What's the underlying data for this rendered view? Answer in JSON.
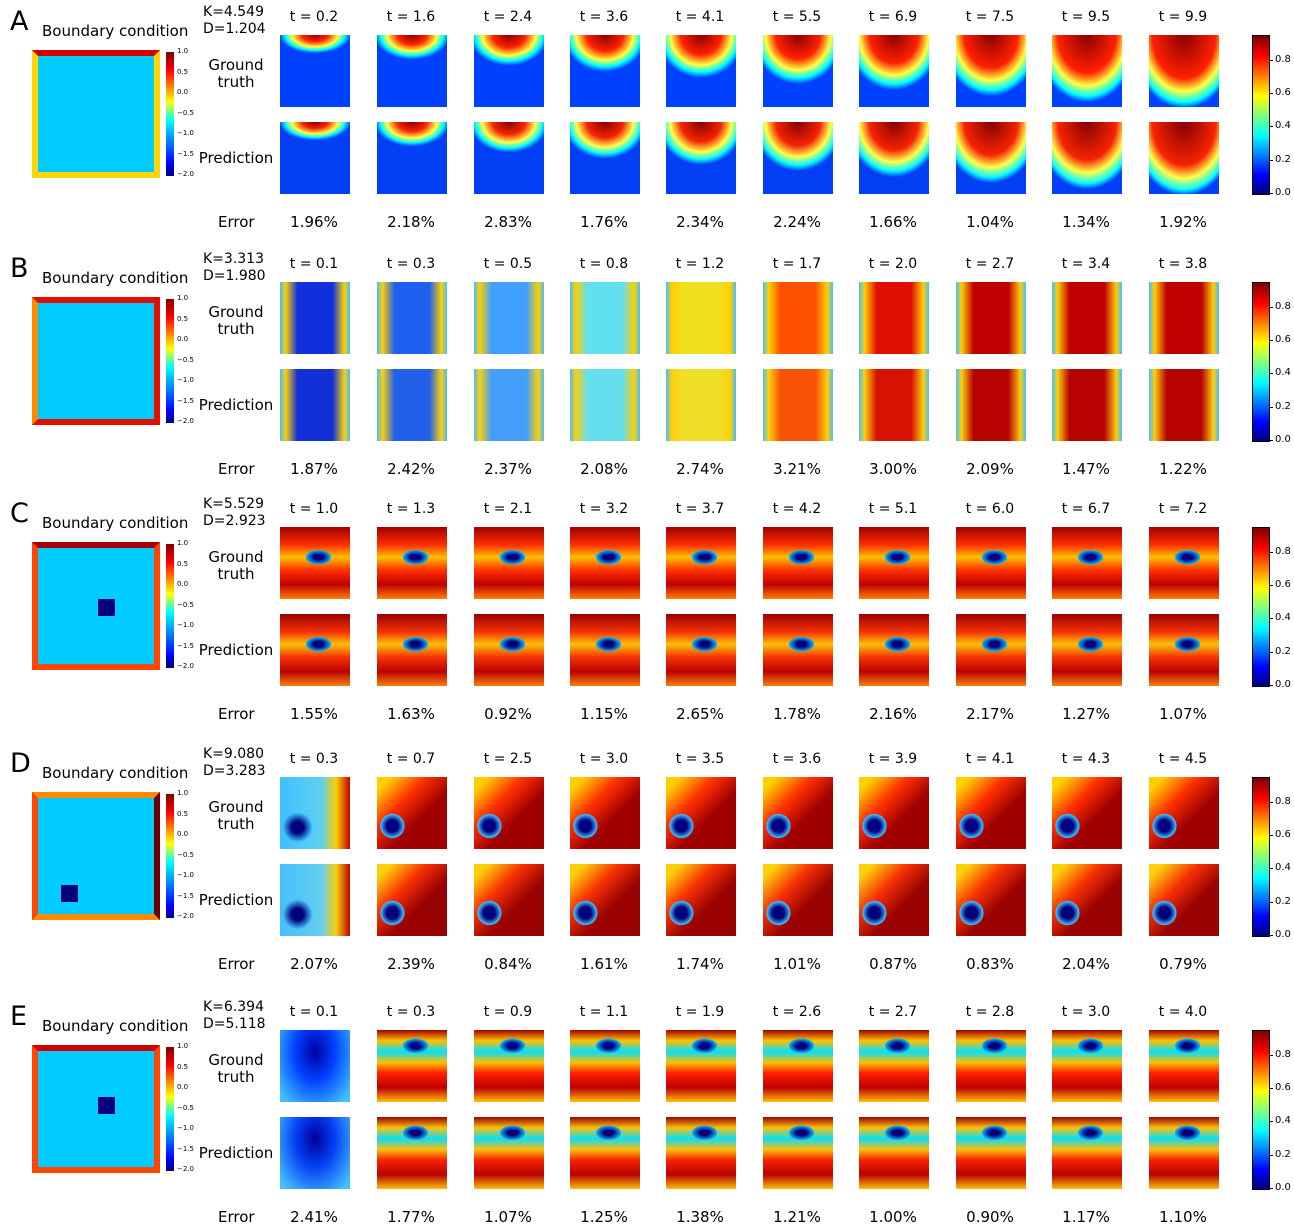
{
  "panels": [
    {
      "letter": "A",
      "bc_label": "Boundary condition",
      "K": "K=4.549",
      "D": "D=1.204",
      "gt_label": "Ground truth",
      "pred_label": "Prediction",
      "error_label": "Error",
      "times": [
        "t = 0.2",
        "t = 1.6",
        "t = 2.4",
        "t = 3.6",
        "t = 4.1",
        "t = 5.5",
        "t = 6.9",
        "t = 7.5",
        "t = 9.5",
        "t = 9.9"
      ],
      "errors": [
        "1.96%",
        "2.18%",
        "2.83%",
        "1.76%",
        "2.34%",
        "2.24%",
        "1.66%",
        "1.04%",
        "1.34%",
        "1.92%"
      ],
      "bc_ticks": [
        "1.0",
        "0.5",
        "0.0",
        "−0.5",
        "−1.0",
        "−1.5",
        "−2.0"
      ],
      "ticks": [
        "0.8",
        "0.6",
        "0.4",
        "0.2",
        "0.0"
      ]
    },
    {
      "letter": "B",
      "bc_label": "Boundary condition",
      "K": "K=3.313",
      "D": "D=1.980",
      "gt_label": "Ground truth",
      "pred_label": "Prediction",
      "error_label": "Error",
      "times": [
        "t = 0.1",
        "t = 0.3",
        "t = 0.5",
        "t = 0.8",
        "t = 1.2",
        "t = 1.7",
        "t = 2.0",
        "t = 2.7",
        "t = 3.4",
        "t = 3.8"
      ],
      "errors": [
        "1.87%",
        "2.42%",
        "2.37%",
        "2.08%",
        "2.74%",
        "3.21%",
        "3.00%",
        "2.09%",
        "1.47%",
        "1.22%"
      ],
      "bc_ticks": [
        "1.0",
        "0.5",
        "0.0",
        "−0.5",
        "−1.0",
        "−1.5",
        "−2.0"
      ],
      "ticks": [
        "0.8",
        "0.6",
        "0.4",
        "0.2",
        "0.0"
      ]
    },
    {
      "letter": "C",
      "bc_label": "Boundary condition",
      "K": "K=5.529",
      "D": "D=2.923",
      "gt_label": "Ground truth",
      "pred_label": "Prediction",
      "error_label": "Error",
      "times": [
        "t = 1.0",
        "t = 1.3",
        "t = 2.1",
        "t = 3.2",
        "t = 3.7",
        "t = 4.2",
        "t = 5.1",
        "t = 6.0",
        "t = 6.7",
        "t = 7.2"
      ],
      "errors": [
        "1.55%",
        "1.63%",
        "0.92%",
        "1.15%",
        "2.65%",
        "1.78%",
        "2.16%",
        "2.17%",
        "1.27%",
        "1.07%"
      ],
      "bc_ticks": [
        "1.0",
        "0.5",
        "0.0",
        "−0.5",
        "−1.0",
        "−1.5",
        "−2.0"
      ],
      "ticks": [
        "0.8",
        "0.6",
        "0.4",
        "0.2",
        "0.0"
      ]
    },
    {
      "letter": "D",
      "bc_label": "Boundary condition",
      "K": "K=9.080",
      "D": "D=3.283",
      "gt_label": "Ground truth",
      "pred_label": "Prediction",
      "error_label": "Error",
      "times": [
        "t = 0.3",
        "t = 0.7",
        "t = 2.5",
        "t = 3.0",
        "t = 3.5",
        "t = 3.6",
        "t = 3.9",
        "t = 4.1",
        "t = 4.3",
        "t = 4.5"
      ],
      "errors": [
        "2.07%",
        "2.39%",
        "0.84%",
        "1.61%",
        "1.74%",
        "1.01%",
        "0.87%",
        "0.83%",
        "2.04%",
        "0.79%"
      ],
      "bc_ticks": [
        "1.0",
        "0.5",
        "0.0",
        "−0.5",
        "−1.0",
        "−1.5",
        "−2.0"
      ],
      "ticks": [
        "0.8",
        "0.6",
        "0.4",
        "0.2",
        "0.0"
      ]
    },
    {
      "letter": "E",
      "bc_label": "Boundary condition",
      "K": "K=6.394",
      "D": "D=5.118",
      "gt_label": "Ground truth",
      "pred_label": "Prediction",
      "error_label": "Error",
      "times": [
        "t = 0.1",
        "t = 0.3",
        "t = 0.9",
        "t = 1.1",
        "t = 1.9",
        "t = 2.6",
        "t = 2.7",
        "t = 2.8",
        "t = 3.0",
        "t = 4.0"
      ],
      "errors": [
        "2.41%",
        "1.77%",
        "1.07%",
        "1.25%",
        "1.38%",
        "1.21%",
        "1.00%",
        "0.90%",
        "1.17%",
        "1.10%"
      ],
      "bc_ticks": [
        "1.0",
        "0.5",
        "0.0",
        "−0.5",
        "−1.0",
        "−1.5",
        "−2.0"
      ],
      "ticks": [
        "0.8",
        "0.6",
        "0.4",
        "0.2",
        "0.0"
      ]
    }
  ]
}
